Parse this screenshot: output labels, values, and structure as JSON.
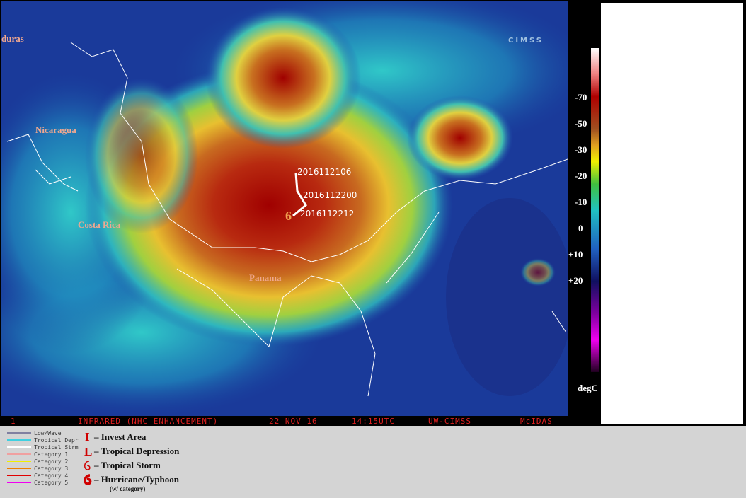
{
  "map": {
    "places": [
      "duras",
      "Nicaragua",
      "Costa Rica",
      "Panama"
    ],
    "track": [
      "2016112106",
      "2016112200",
      "2016112212"
    ],
    "colorbar": {
      "ticks": [
        "-70",
        "-50",
        "-30",
        "-20",
        "-10",
        "0",
        "+10",
        "+20"
      ],
      "unit": "degC"
    },
    "footer": [
      "1",
      "INFRARED (NHC ENHANCEMENT)",
      "22 NOV 16",
      "14:15UTC",
      "UW-CIMSS",
      "McIDAS"
    ],
    "logo": "CIMSS"
  },
  "legend": {
    "lines": [
      "Low/Wave",
      "Tropical Depr",
      "Tropical Strm",
      "Category 1",
      "Category 2",
      "Category 3",
      "Category 4",
      "Category 5"
    ],
    "symbols": [
      {
        "symbol": "I",
        "label": "– Invest Area"
      },
      {
        "symbol": "L",
        "label": "– Tropical Depression"
      },
      {
        "label": "– Tropical Storm"
      },
      {
        "label": "– Hurricane/Typhoon",
        "note": "(w/ category)"
      }
    ]
  }
}
